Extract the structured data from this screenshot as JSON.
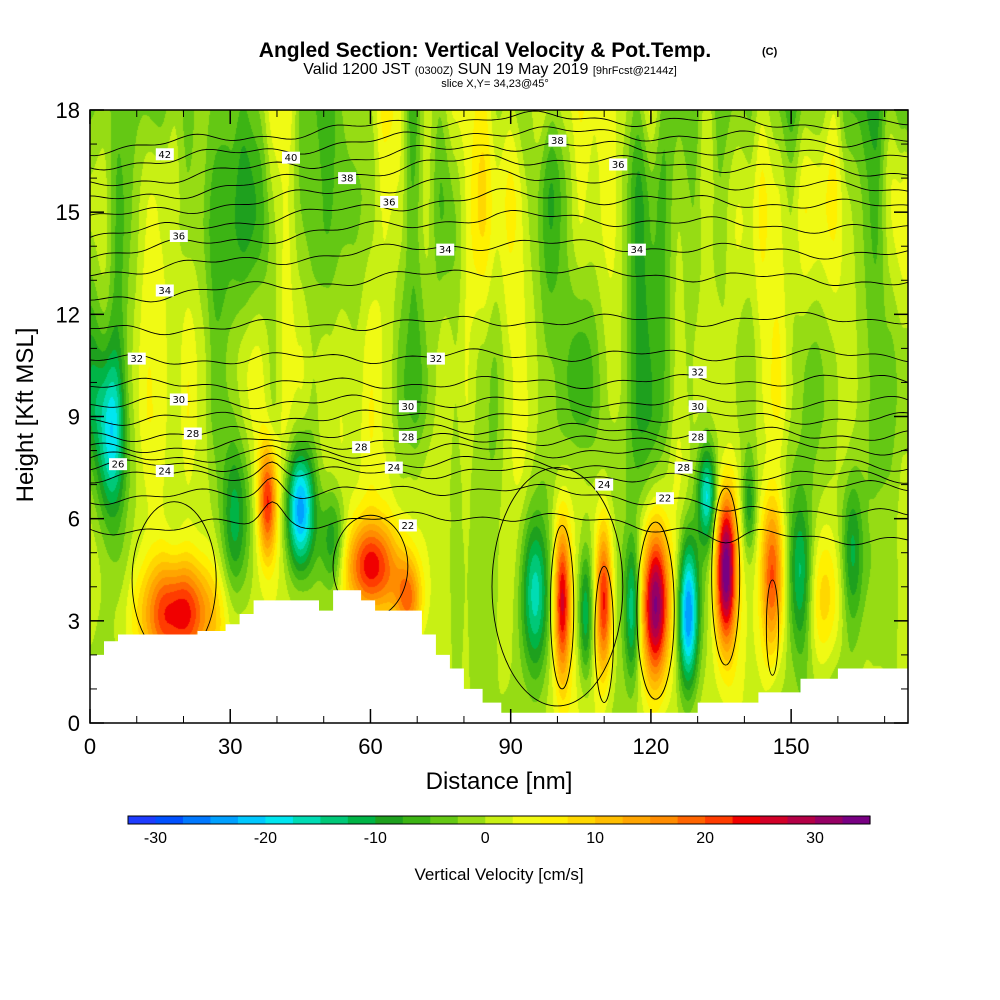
{
  "chart_data": {
    "type": "heatmap",
    "title": "Angled Section: Vertical Velocity & Pot.Temp.",
    "title_tag": "(C)",
    "subtitle_parts": [
      "Valid 1200 JST ",
      "(0300Z)",
      " SUN 19 May 2019 ",
      "[9hrFcst@2144z]"
    ],
    "slice": "slice X,Y= 34,23@45°",
    "xlabel": "Distance [nm]",
    "ylabel": "Height [Kft MSL]",
    "xlim": [
      0,
      175
    ],
    "ylim": [
      0,
      18
    ],
    "xticks": [
      0,
      30,
      60,
      90,
      120,
      150
    ],
    "yticks": [
      0,
      3,
      6,
      9,
      12,
      15,
      18
    ],
    "colorbar": {
      "label": "Vertical Velocity [cm/s]",
      "ticks": [
        -30,
        -20,
        -10,
        0,
        10,
        20,
        30
      ],
      "range": [
        -32.5,
        35
      ],
      "step": 2.5
    },
    "colors": [
      "#1e3cff",
      "#0050ff",
      "#0078ff",
      "#00a0ff",
      "#00c8ff",
      "#00e6f0",
      "#00dcb4",
      "#00c878",
      "#00b446",
      "#1ea01e",
      "#3cb414",
      "#64c814",
      "#96dc14",
      "#c8f014",
      "#f0fa14",
      "#fff000",
      "#ffd700",
      "#ffbe00",
      "#ffa500",
      "#ff8c00",
      "#ff6400",
      "#ff3c00",
      "#f00000",
      "#d20028",
      "#b40046",
      "#960064",
      "#780082"
    ],
    "terrain": [
      [
        0,
        2
      ],
      [
        3,
        2
      ],
      [
        3,
        2.4
      ],
      [
        6,
        2.4
      ],
      [
        6,
        2.6
      ],
      [
        23,
        2.6
      ],
      [
        23,
        2.7
      ],
      [
        29,
        2.7
      ],
      [
        29,
        2.9
      ],
      [
        32,
        2.9
      ],
      [
        32,
        3.2
      ],
      [
        35,
        3.2
      ],
      [
        35,
        3.6
      ],
      [
        49,
        3.6
      ],
      [
        49,
        3.3
      ],
      [
        52,
        3.3
      ],
      [
        52,
        3.9
      ],
      [
        58,
        3.9
      ],
      [
        58,
        3.6
      ],
      [
        61,
        3.6
      ],
      [
        61,
        3.3
      ],
      [
        71,
        3.3
      ],
      [
        71,
        2.6
      ],
      [
        74,
        2.6
      ],
      [
        74,
        2
      ],
      [
        77,
        2
      ],
      [
        77,
        1.6
      ],
      [
        80,
        1.6
      ],
      [
        80,
        1
      ],
      [
        84,
        1
      ],
      [
        84,
        0.6
      ],
      [
        88,
        0.6
      ],
      [
        88,
        0.3
      ],
      [
        130,
        0.3
      ],
      [
        130,
        0.6
      ],
      [
        143,
        0.6
      ],
      [
        143,
        0.9
      ],
      [
        152,
        0.9
      ],
      [
        152,
        1.3
      ],
      [
        160,
        1.3
      ],
      [
        160,
        1.6
      ],
      [
        175,
        1.6
      ]
    ],
    "updrafts": [
      {
        "x": 19,
        "z": 3.2,
        "amp": 24,
        "sx": 8,
        "sz": 1.6
      },
      {
        "x": 38,
        "z": 6.5,
        "amp": 22,
        "sx": 2,
        "sz": 1.7
      },
      {
        "x": 60,
        "z": 4.6,
        "amp": 22,
        "sx": 6,
        "sz": 1.4
      },
      {
        "x": 68,
        "z": 3.6,
        "amp": 16,
        "sx": 3,
        "sz": 1.2
      },
      {
        "x": 101,
        "z": 3.6,
        "amp": 25,
        "sx": 1.8,
        "sz": 2.3
      },
      {
        "x": 110,
        "z": 3.6,
        "amp": 24,
        "sx": 1.8,
        "sz": 2.3
      },
      {
        "x": 121,
        "z": 3.5,
        "amp": 34,
        "sx": 3,
        "sz": 2.3
      },
      {
        "x": 136,
        "z": 4.5,
        "amp": 36,
        "sx": 2.3,
        "sz": 2.3
      },
      {
        "x": 146,
        "z": 4.3,
        "amp": 22,
        "sx": 2.5,
        "sz": 2.4
      },
      {
        "x": 157,
        "z": 3.6,
        "amp": 9,
        "sx": 4,
        "sz": 2
      }
    ],
    "downdrafts": [
      {
        "x": 31,
        "z": 6,
        "amp": 12,
        "sx": 3,
        "sz": 2.4
      },
      {
        "x": 45,
        "z": 6.3,
        "amp": 27,
        "sx": 3,
        "sz": 1.9
      },
      {
        "x": 52,
        "z": 5.2,
        "amp": 13,
        "sx": 3,
        "sz": 1.6
      },
      {
        "x": 4,
        "z": 8.5,
        "amp": 18,
        "sx": 3,
        "sz": 2.5
      },
      {
        "x": 95,
        "z": 3.8,
        "amp": 16,
        "sx": 3,
        "sz": 2.3
      },
      {
        "x": 106,
        "z": 3.2,
        "amp": 14,
        "sx": 1.6,
        "sz": 2
      },
      {
        "x": 116,
        "z": 3.3,
        "amp": 14,
        "sx": 1.6,
        "sz": 2
      },
      {
        "x": 128,
        "z": 3.2,
        "amp": 27,
        "sx": 2.2,
        "sz": 2.2
      },
      {
        "x": 132,
        "z": 6.6,
        "amp": 16,
        "sx": 2,
        "sz": 1.4
      },
      {
        "x": 141,
        "z": 6.4,
        "amp": 10,
        "sx": 1.5,
        "sz": 1.4
      },
      {
        "x": 152,
        "z": 4.4,
        "amp": 13,
        "sx": 2.5,
        "sz": 2.3
      },
      {
        "x": 163,
        "z": 5,
        "amp": 12,
        "sx": 2.5,
        "sz": 2.3
      }
    ],
    "isentropes": [
      {
        "value": 22,
        "z0": 5.4,
        "ctr": 6.1,
        "slope": -0.002
      },
      {
        "value": 23,
        "z0": 6.25,
        "ctr": 6.9,
        "slope": -0.003
      },
      {
        "value": 24,
        "z0": 7.0,
        "ctr": 7.4,
        "slope": -0.002
      },
      {
        "value": 25,
        "z0": 7.3,
        "ctr": 7.7,
        "slope": -0.002
      },
      {
        "value": 26,
        "z0": 7.6,
        "ctr": 8.05,
        "slope": -0.001
      },
      {
        "value": 27,
        "z0": 8.0,
        "ctr": 8.35,
        "slope": 0.0
      },
      {
        "value": 28,
        "z0": 8.4,
        "ctr": 8.65,
        "slope": 0.0
      },
      {
        "value": 29,
        "z0": 8.9,
        "ctr": 9.05,
        "slope": 0.0
      },
      {
        "value": 30,
        "z0": 9.4,
        "ctr": 9.45,
        "slope": 0.0
      },
      {
        "value": 31,
        "z0": 10.0,
        "ctr": 10.0,
        "slope": 0.001
      },
      {
        "value": 32,
        "z0": 10.7,
        "ctr": 10.8,
        "slope": 0.001
      },
      {
        "value": 33,
        "z0": 11.7,
        "ctr": 11.8,
        "slope": 0.002
      },
      {
        "value": 34,
        "z0": 12.6,
        "ctr": 13.3,
        "slope": 0.003
      },
      {
        "value": 35,
        "z0": 13.4,
        "ctr": 14.1,
        "slope": 0.003
      },
      {
        "value": 36,
        "z0": 14.0,
        "ctr": 14.9,
        "slope": 0.004
      },
      {
        "value": 37,
        "z0": 14.6,
        "ctr": 15.5,
        "slope": 0.005
      },
      {
        "value": 38,
        "z0": 15.1,
        "ctr": 16.1,
        "slope": 0.005
      },
      {
        "value": 39,
        "z0": 15.6,
        "ctr": 16.6,
        "slope": 0.005
      },
      {
        "value": 40,
        "z0": 16.1,
        "ctr": 17.0,
        "slope": 0.005
      },
      {
        "value": 41,
        "z0": 16.6,
        "ctr": 17.4,
        "slope": 0.004
      },
      {
        "value": 42,
        "z0": 17.1,
        "ctr": 17.8,
        "slope": 0.004
      }
    ],
    "labels": [
      {
        "text": "42",
        "x": 16,
        "z": 16.7
      },
      {
        "text": "40",
        "x": 43,
        "z": 16.6
      },
      {
        "text": "38",
        "x": 55,
        "z": 16.0
      },
      {
        "text": "38",
        "x": 100,
        "z": 17.1
      },
      {
        "text": "36",
        "x": 113,
        "z": 16.4
      },
      {
        "text": "36",
        "x": 64,
        "z": 15.3
      },
      {
        "text": "36",
        "x": 19,
        "z": 14.3
      },
      {
        "text": "34",
        "x": 76,
        "z": 13.9
      },
      {
        "text": "34",
        "x": 117,
        "z": 13.9
      },
      {
        "text": "34",
        "x": 16,
        "z": 12.7
      },
      {
        "text": "32",
        "x": 10,
        "z": 10.7
      },
      {
        "text": "32",
        "x": 74,
        "z": 10.7
      },
      {
        "text": "32",
        "x": 130,
        "z": 10.3
      },
      {
        "text": "30",
        "x": 19,
        "z": 9.5
      },
      {
        "text": "30",
        "x": 68,
        "z": 9.3
      },
      {
        "text": "30",
        "x": 130,
        "z": 9.3
      },
      {
        "text": "28",
        "x": 22,
        "z": 8.5
      },
      {
        "text": "28",
        "x": 68,
        "z": 8.4
      },
      {
        "text": "28",
        "x": 130,
        "z": 8.4
      },
      {
        "text": "28",
        "x": 58,
        "z": 8.1
      },
      {
        "text": "28",
        "x": 127,
        "z": 7.5
      },
      {
        "text": "26",
        "x": 6,
        "z": 7.6
      },
      {
        "text": "24",
        "x": 16,
        "z": 7.4
      },
      {
        "text": "24",
        "x": 65,
        "z": 7.5
      },
      {
        "text": "24",
        "x": 110,
        "z": 7.0
      },
      {
        "text": "22",
        "x": 123,
        "z": 6.6
      },
      {
        "text": "22",
        "x": 68,
        "z": 5.8
      }
    ]
  }
}
